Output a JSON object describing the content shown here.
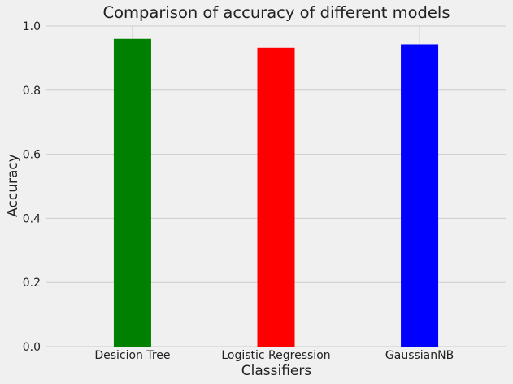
{
  "chart_data": {
    "type": "bar",
    "title": "Comparison of accuracy of different models",
    "xlabel": "Classifiers",
    "ylabel": "Accuracy",
    "categories": [
      "Desicion Tree",
      "Logistic Regression",
      "GaussianNB"
    ],
    "values": [
      0.96,
      0.932,
      0.943
    ],
    "colors": [
      "#008000",
      "#ff0000",
      "#0000ff"
    ],
    "ylim": [
      0,
      1.0
    ],
    "yticks": [
      "0.0",
      "0.2",
      "0.4",
      "0.6",
      "0.8",
      "1.0"
    ],
    "grid": true,
    "legend": "none"
  }
}
